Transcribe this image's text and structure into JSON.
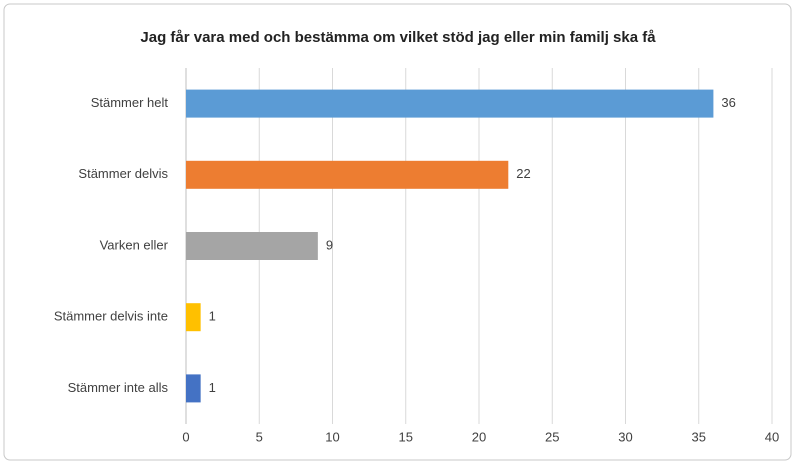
{
  "chart_data": {
    "type": "barh",
    "title": "Jag får vara med och bestämma om vilket stöd jag eller min familj ska få",
    "categories": [
      "Stämmer helt",
      "Stämmer delvis",
      "Varken eller",
      "Stämmer delvis inte",
      "Stämmer inte alls"
    ],
    "values": [
      36,
      22,
      9,
      1,
      1
    ],
    "colors": [
      "#5b9bd5",
      "#ed7d31",
      "#a5a5a5",
      "#ffc000",
      "#4472c4"
    ],
    "xlim": [
      0,
      40
    ],
    "xticks": [
      0,
      5,
      10,
      15,
      20,
      25,
      30,
      35,
      40
    ],
    "grid": true
  }
}
